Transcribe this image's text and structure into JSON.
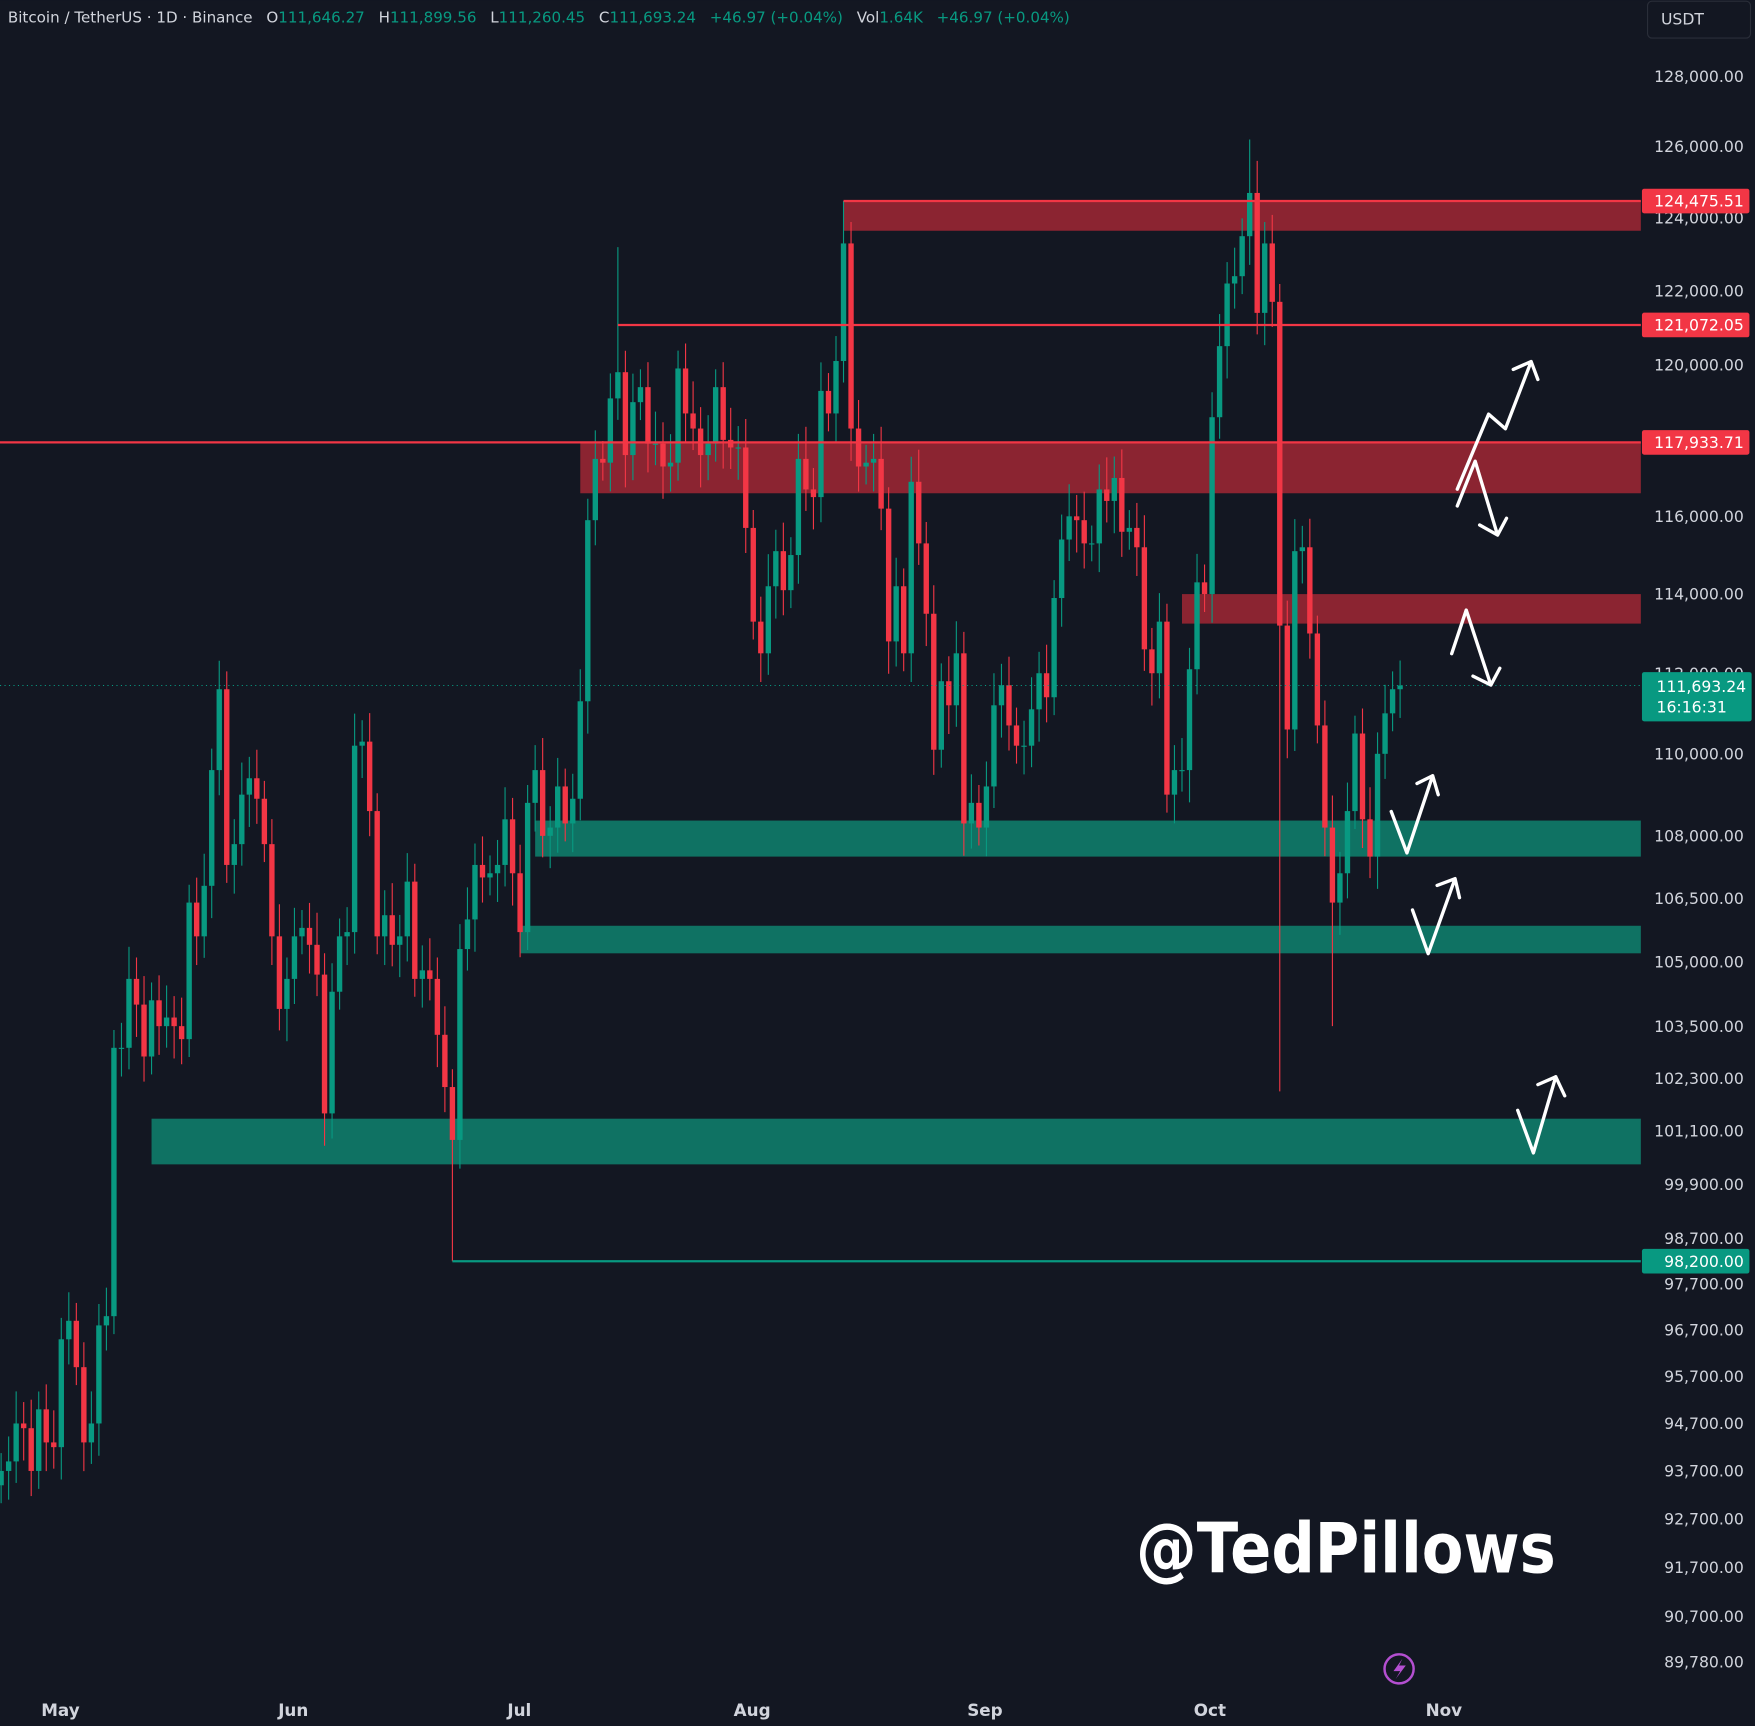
{
  "header": {
    "symbol": "Bitcoin / TetherUS · 1D · Binance",
    "o_label": "O",
    "o_value": "111,646.27",
    "h_label": "H",
    "h_value": "111,899.56",
    "l_label": "L",
    "l_value": "111,260.45",
    "c_label": "C",
    "c_value": "111,693.24",
    "change": "+46.97 (+0.04%)",
    "vol_label": "Vol",
    "vol_value": "1.64K",
    "vol_change": "+46.97 (+0.04%)",
    "currency_button": "USDT"
  },
  "watermark": "@TedPillows",
  "colors": {
    "background": "#131722",
    "up": "#089981",
    "down": "#f23645",
    "resistance_zone": "#8b2431",
    "support_zone": "#0f7263",
    "watermark": "#ffffff",
    "replay_icon": "#b44fd1"
  },
  "icons": {
    "replay": "lightning-circle-icon"
  },
  "chart_data": {
    "type": "candlestick",
    "scale": "log",
    "ylim": [
      89780,
      128000
    ],
    "y_ticks": [
      "128,000.00",
      "126,000.00",
      "124,000.00",
      "122,000.00",
      "120,000.00",
      "116,000.00",
      "114,000.00",
      "112,000.00",
      "110,000.00",
      "108,000.00",
      "106,500.00",
      "105,000.00",
      "103,500.00",
      "102,300.00",
      "101,100.00",
      "99,900.00",
      "98,700.00",
      "97,700.00",
      "96,700.00",
      "95,700.00",
      "94,700.00",
      "93,700.00",
      "92,700.00",
      "91,700.00",
      "90,700.00",
      "89,780.00"
    ],
    "x_ticks": [
      "May",
      "Jun",
      "Jul",
      "Aug",
      "Sep",
      "Oct",
      "Nov"
    ],
    "first_open": 93400,
    "closes": [
      93700,
      93900,
      94700,
      94600,
      93700,
      95000,
      94300,
      94200,
      96500,
      96900,
      95900,
      94300,
      94700,
      96800,
      97000,
      103000,
      103000,
      104600,
      104000,
      102800,
      104100,
      103500,
      103700,
      103500,
      103200,
      106400,
      105600,
      106800,
      109600,
      111600,
      107300,
      107800,
      109000,
      109400,
      108900,
      107800,
      105600,
      103900,
      104600,
      105600,
      105800,
      105400,
      104700,
      101500,
      104300,
      105600,
      105700,
      110200,
      110300,
      108600,
      105600,
      106100,
      105400,
      105600,
      106900,
      104600,
      104800,
      104600,
      103300,
      102100,
      100900,
      105300,
      106000,
      107300,
      107000,
      107100,
      107300,
      108400,
      107100,
      105700,
      108800,
      109600,
      108000,
      108200,
      109200,
      108300,
      108900,
      111300,
      115900,
      117500,
      117400,
      119100,
      119800,
      117600,
      119000,
      119400,
      117900,
      117900,
      117300,
      117400,
      119900,
      118700,
      118300,
      117600,
      117900,
      119400,
      118000,
      117800,
      117800,
      115700,
      113300,
      112500,
      114200,
      115100,
      114100,
      115000,
      117500,
      116700,
      116500,
      119300,
      118700,
      120100,
      123300,
      118300,
      117300,
      117400,
      117500,
      116200,
      112800,
      114200,
      112500,
      116900,
      115300,
      113500,
      110100,
      111800,
      111200,
      112500,
      108300,
      108800,
      108200,
      109200,
      111200,
      111700,
      110700,
      110200,
      110200,
      111100,
      112000,
      111400,
      113900,
      115400,
      116000,
      115900,
      115300,
      115300,
      116700,
      116400,
      117000,
      115600,
      115700,
      115200,
      112600,
      112000,
      113300,
      109000,
      109600,
      109600,
      112100,
      114300,
      114000,
      118600,
      120500,
      122200,
      122400,
      123500,
      124700,
      121400,
      123300,
      121700,
      113200,
      110600,
      115100,
      115200,
      113000,
      110700,
      108200,
      106400,
      107100,
      108600,
      110500,
      108400,
      107500,
      110000,
      111000,
      111600,
      111693.24
    ],
    "extremes": [
      {
        "date": "Jun 22",
        "low": 98200
      },
      {
        "date": "Jul 14",
        "high": 123200
      },
      {
        "date": "Aug 13",
        "high": 124475.51
      },
      {
        "date": "Oct 6",
        "high": 126200
      },
      {
        "date": "Oct 10",
        "low": 102000
      },
      {
        "date": "Oct 17",
        "low": 103500
      }
    ],
    "current_price": {
      "value": "111,693.24",
      "countdown": "16:16:31",
      "price": 111693.24
    },
    "levels": [
      {
        "label": "124,475.51",
        "price": 124475.51,
        "color": "#f23645"
      },
      {
        "label": "121,072.05",
        "price": 121072.05,
        "color": "#f23645"
      },
      {
        "label": "117,933.71",
        "price": 117933.71,
        "color": "#f23645"
      },
      {
        "label": "98,200.00",
        "price": 98200,
        "color": "#089981"
      }
    ],
    "zones": [
      {
        "kind": "resistance",
        "top": 124475.51,
        "bottom": 123650,
        "from": "Aug 13"
      },
      {
        "kind": "resistance",
        "top": 117933.71,
        "bottom": 116600,
        "from": "Jul 9"
      },
      {
        "kind": "resistance",
        "top": 114000,
        "bottom": 113250,
        "from": "Sep 27"
      },
      {
        "kind": "support",
        "top": 108370,
        "bottom": 107500,
        "from": "Jul 3"
      },
      {
        "kind": "support",
        "top": 105850,
        "bottom": 105200,
        "from": "Jul 1"
      },
      {
        "kind": "support",
        "top": 101380,
        "bottom": 100350,
        "from": "May 13"
      }
    ]
  }
}
